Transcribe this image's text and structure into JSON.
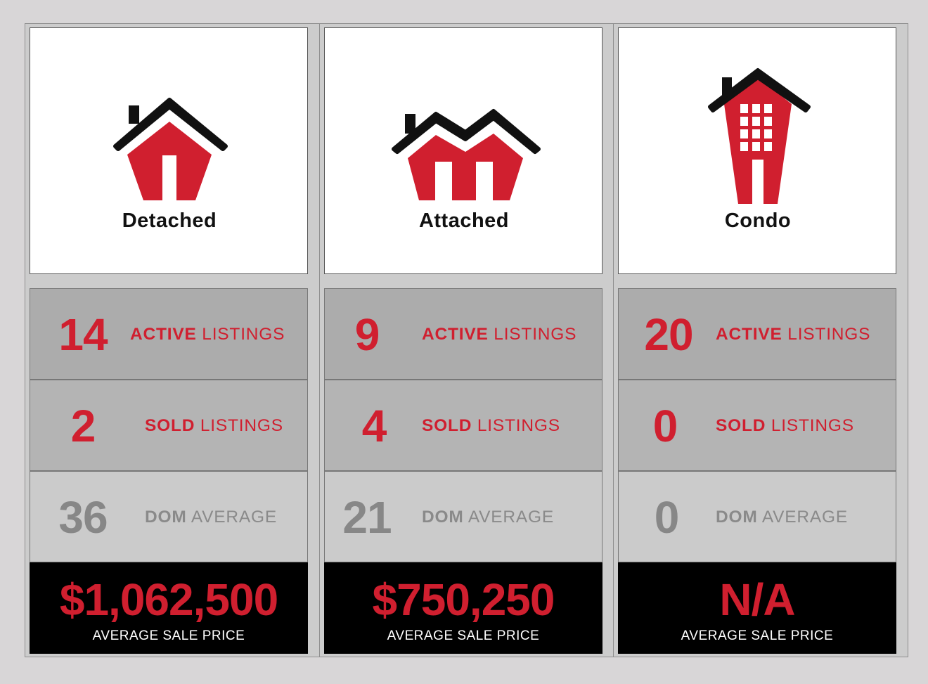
{
  "colors": {
    "accent": "#d01f2f",
    "roof": "#111111",
    "muted": "#878787"
  },
  "cards": [
    {
      "type": "Detached",
      "icon": "detached-house-icon",
      "active": {
        "value": "14",
        "bold": "ACTIVE",
        "rest": " LISTINGS"
      },
      "sold": {
        "value": "2",
        "bold": "SOLD",
        "rest": " LISTINGS"
      },
      "dom": {
        "value": "36",
        "bold": "DOM",
        "rest": " AVERAGE"
      },
      "price": {
        "value": "$1,062,500",
        "label": "AVERAGE SALE PRICE"
      }
    },
    {
      "type": "Attached",
      "icon": "attached-house-icon",
      "active": {
        "value": "9",
        "bold": "ACTIVE",
        "rest": " LISTINGS"
      },
      "sold": {
        "value": "4",
        "bold": "SOLD",
        "rest": " LISTINGS"
      },
      "dom": {
        "value": "21",
        "bold": "DOM",
        "rest": " AVERAGE"
      },
      "price": {
        "value": "$750,250",
        "label": "AVERAGE SALE PRICE"
      }
    },
    {
      "type": "Condo",
      "icon": "condo-building-icon",
      "active": {
        "value": "20",
        "bold": "ACTIVE",
        "rest": " LISTINGS"
      },
      "sold": {
        "value": "0",
        "bold": "SOLD",
        "rest": " LISTINGS"
      },
      "dom": {
        "value": "0",
        "bold": "DOM",
        "rest": " AVERAGE"
      },
      "price": {
        "value": "N/A",
        "label": "AVERAGE SALE PRICE"
      }
    }
  ]
}
